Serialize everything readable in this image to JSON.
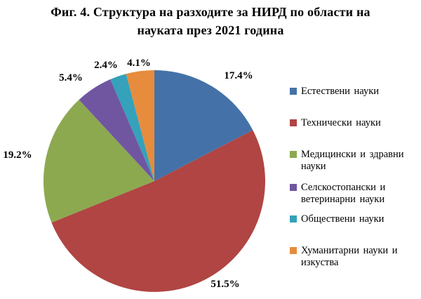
{
  "title": {
    "line1": "Фиг. 4. Структура на разходите за НИРД по области на",
    "line2": "науката през 2021 година"
  },
  "chart_data": {
    "type": "pie",
    "title": "Фиг. 4. Структура на разходите за НИРД по области на науката през 2021 година",
    "categories": [
      "Естествени науки",
      "Технически науки",
      "Медицински и здравни науки",
      "Селскостопански и ветеринарни науки",
      "Обществени науки",
      "Хуманитарни науки и изкуства"
    ],
    "values": [
      17.4,
      51.5,
      19.2,
      5.4,
      2.4,
      4.1
    ],
    "labels": [
      "17.4%",
      "51.5%",
      "19.2%",
      "5.4%",
      "2.4%",
      "4.1%"
    ],
    "colors": [
      "#4472A8",
      "#B04543",
      "#8CA950",
      "#7056A1",
      "#35A1BA",
      "#E78C3C"
    ],
    "legend_lines": [
      [
        "Естествени науки"
      ],
      [
        "Технически науки"
      ],
      [
        "Медицински и здравни",
        "науки"
      ],
      [
        "Селскостопански и",
        "ветеринарни науки"
      ],
      [
        "Обществени науки"
      ],
      [
        "Хуманитарни науки и",
        "изкуства"
      ]
    ],
    "legend_position": "right",
    "start_angle_deg": 0,
    "direction": "clockwise",
    "label_format": "percent-outside",
    "total": 100.0
  }
}
